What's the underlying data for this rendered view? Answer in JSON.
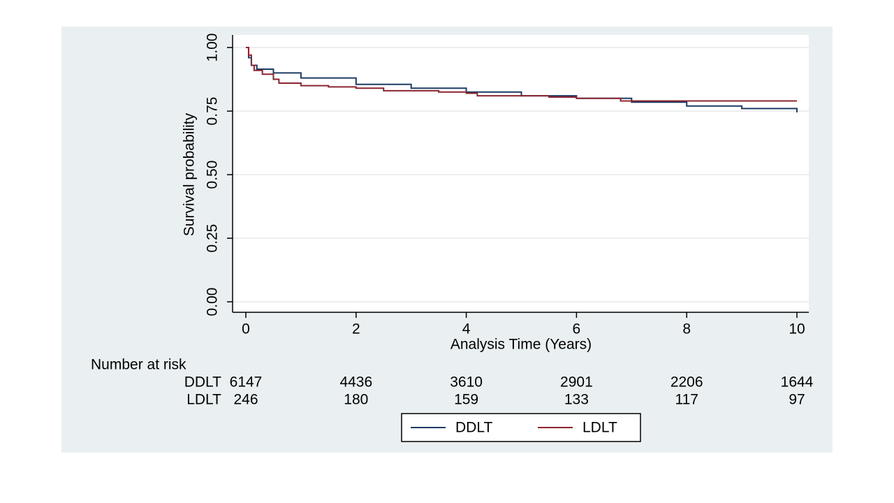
{
  "chart_data": {
    "type": "step",
    "x_label": "Analysis Time (Years)",
    "y_label": "Survival probability",
    "xlim": [
      0,
      10
    ],
    "ylim": [
      0,
      1
    ],
    "xticks": [
      0,
      2,
      4,
      6,
      8,
      10
    ],
    "yticks": [
      {
        "value": 0,
        "label": "0.00"
      },
      {
        "value": 0.25,
        "label": "0.25"
      },
      {
        "value": 0.5,
        "label": "0.50"
      },
      {
        "value": 0.75,
        "label": "0.75"
      },
      {
        "value": 1,
        "label": "1.00"
      }
    ],
    "grid": true,
    "series": [
      {
        "name": "DDLT",
        "color": "#1f3b63",
        "x": [
          0,
          0.05,
          0.1,
          0.2,
          0.5,
          1,
          2,
          3,
          4,
          5,
          6,
          7,
          8,
          9,
          10
        ],
        "values": [
          1.0,
          0.96,
          0.93,
          0.915,
          0.9,
          0.88,
          0.855,
          0.84,
          0.825,
          0.81,
          0.8,
          0.785,
          0.77,
          0.76,
          0.745
        ]
      },
      {
        "name": "LDLT",
        "color": "#8b2530",
        "x": [
          0,
          0.05,
          0.1,
          0.15,
          0.3,
          0.5,
          0.6,
          1,
          1.5,
          2,
          2.5,
          3.5,
          4,
          4.2,
          5.5,
          6,
          6.8,
          10
        ],
        "values": [
          1.0,
          0.97,
          0.93,
          0.91,
          0.895,
          0.875,
          0.86,
          0.85,
          0.845,
          0.84,
          0.83,
          0.825,
          0.82,
          0.81,
          0.805,
          0.8,
          0.79,
          0.79
        ]
      }
    ],
    "risk_table": {
      "title": "Number at risk",
      "rows": [
        {
          "name": "DDLT",
          "values": [
            6147,
            4436,
            3610,
            2901,
            2206,
            1644
          ]
        },
        {
          "name": "LDLT",
          "values": [
            246,
            180,
            159,
            133,
            117,
            97
          ]
        }
      ]
    }
  }
}
